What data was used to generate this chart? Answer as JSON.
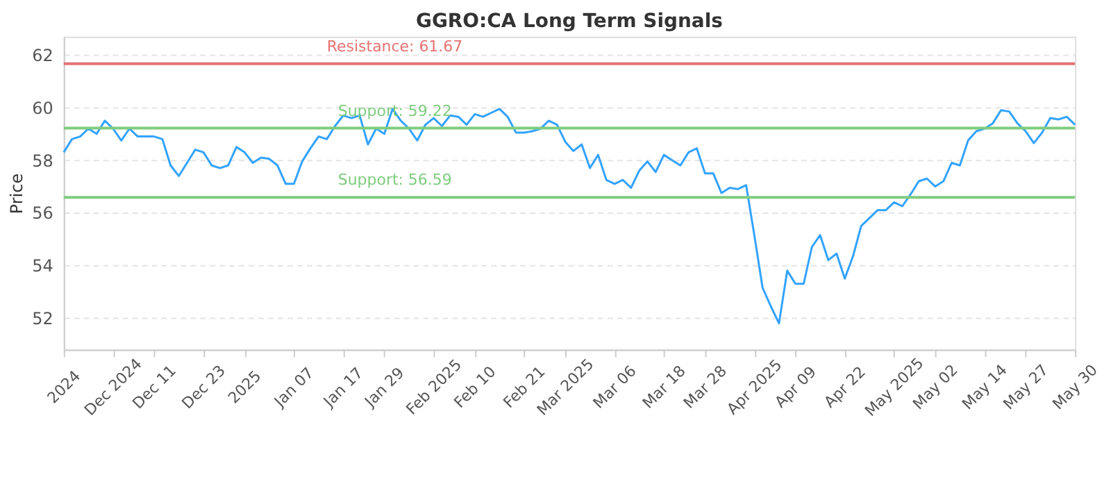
{
  "chart_data": {
    "type": "line",
    "title": "GGRO:CA Long Term Signals",
    "ylabel": "Price",
    "categories": [
      "2024",
      null,
      null,
      null,
      null,
      null,
      "Dec 2024",
      null,
      null,
      null,
      null,
      "Dec 11",
      null,
      null,
      null,
      null,
      null,
      "Dec 23",
      null,
      null,
      null,
      null,
      "2025",
      null,
      null,
      null,
      null,
      null,
      "Jan 07",
      null,
      null,
      null,
      null,
      null,
      "Jan 17",
      null,
      null,
      null,
      null,
      "Jan 29",
      null,
      null,
      null,
      null,
      null,
      "Feb 2025",
      null,
      null,
      null,
      null,
      "Feb 10",
      null,
      null,
      null,
      null,
      null,
      "Feb 21",
      null,
      null,
      null,
      null,
      "Mar 2025",
      null,
      null,
      null,
      null,
      null,
      "Mar 06",
      null,
      null,
      null,
      null,
      null,
      "Mar 18",
      null,
      null,
      null,
      null,
      "Mar 28",
      null,
      null,
      null,
      null,
      null,
      "Apr 2025",
      null,
      null,
      null,
      null,
      "Apr 09",
      null,
      null,
      null,
      null,
      null,
      "Apr 22",
      null,
      null,
      null,
      null,
      null,
      "May 2025",
      null,
      null,
      null,
      null,
      "May 02",
      null,
      null,
      null,
      null,
      null,
      "May 14",
      null,
      null,
      null,
      null,
      "May 27",
      null,
      null,
      null,
      null,
      null,
      "May 30"
    ],
    "series": [
      {
        "color": "#33a3ff",
        "values": [
          58.3,
          58.8,
          58.9,
          59.2,
          59.0,
          59.5,
          59.2,
          58.75,
          59.2,
          58.9,
          58.9,
          58.9,
          58.8,
          57.8,
          57.4,
          57.9,
          58.4,
          58.3,
          57.8,
          57.7,
          57.8,
          58.5,
          58.3,
          57.9,
          58.1,
          58.05,
          57.8,
          57.1,
          57.1,
          57.95,
          58.45,
          58.9,
          58.8,
          59.3,
          59.7,
          59.6,
          59.7,
          58.6,
          59.2,
          59.0,
          59.95,
          59.5,
          59.2,
          58.75,
          59.35,
          59.6,
          59.3,
          59.7,
          59.65,
          59.35,
          59.75,
          59.65,
          59.8,
          59.95,
          59.65,
          59.05,
          59.05,
          59.1,
          59.2,
          59.5,
          59.35,
          58.7,
          58.35,
          58.6,
          57.7,
          58.2,
          57.25,
          57.1,
          57.25,
          56.95,
          57.6,
          57.95,
          57.55,
          58.2,
          58.0,
          57.8,
          58.3,
          58.45,
          57.5,
          57.5,
          56.75,
          56.95,
          56.9,
          57.05,
          55.15,
          53.15,
          52.45,
          51.8,
          53.8,
          53.3,
          53.3,
          54.7,
          55.15,
          54.2,
          54.45,
          53.5,
          54.35,
          55.5,
          55.8,
          56.1,
          56.1,
          56.4,
          56.25,
          56.7,
          57.2,
          57.3,
          57.0,
          57.2,
          57.9,
          57.8,
          58.75,
          59.1,
          59.2,
          59.4,
          59.9,
          59.85,
          59.4,
          59.1,
          58.65,
          59.05,
          59.6,
          59.55,
          59.65,
          59.35
        ]
      }
    ],
    "ylim": [
      50.8,
      62.7
    ],
    "yticks": [
      52,
      54,
      56,
      58,
      60,
      62
    ],
    "grid": "y",
    "marker": "none",
    "line_style": "solid",
    "ref_lines": [
      {
        "axis": "y",
        "value": 61.67,
        "label": "Resistance: 61.67",
        "color": "#e57373"
      },
      {
        "axis": "y",
        "value": 59.22,
        "label": "Support: 59.22",
        "color": "#7fcc7f"
      },
      {
        "axis": "y",
        "value": 56.59,
        "label": "Support: 56.59",
        "color": "#7fcc7f"
      }
    ]
  }
}
